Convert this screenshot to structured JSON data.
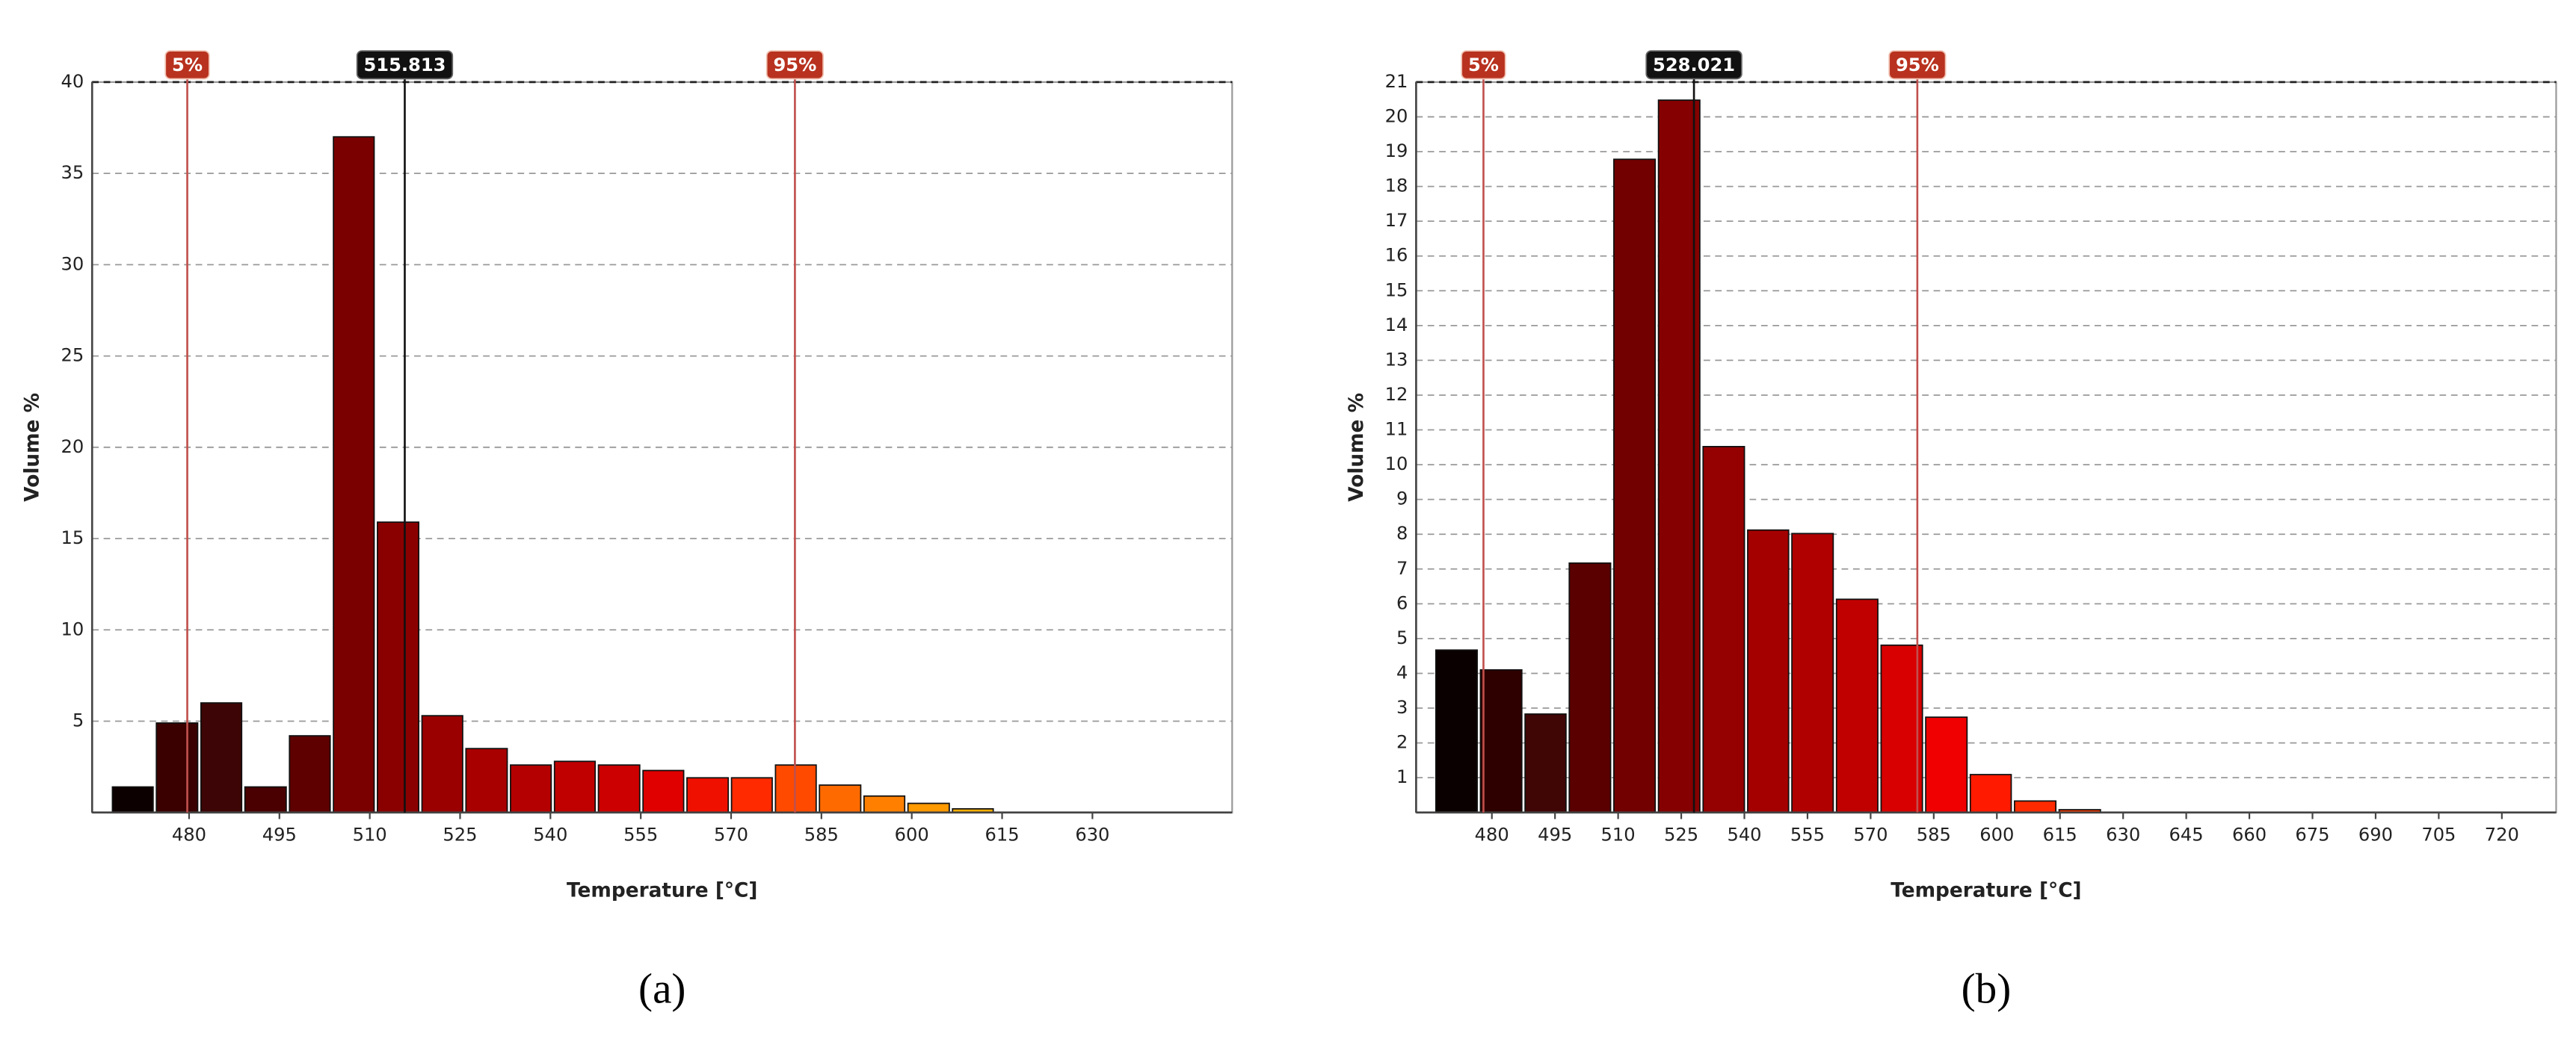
{
  "chart_data": [
    {
      "type": "histogram",
      "caption": "(a)",
      "xlabel": "Temperature [°C]",
      "ylabel": "Volume %",
      "bins": [
        467.0,
        474.3,
        481.7,
        489.0,
        496.4,
        503.7,
        511.0,
        518.4,
        525.7,
        533.1,
        540.4,
        547.7,
        555.1,
        562.4,
        569.8,
        577.1,
        584.4,
        591.8,
        599.1,
        606.5,
        613.8
      ],
      "values": [
        1.4,
        4.9,
        6.0,
        1.4,
        4.2,
        37.0,
        15.9,
        5.3,
        3.5,
        2.6,
        2.8,
        2.6,
        2.3,
        1.9,
        1.9,
        2.6,
        1.5,
        0.9,
        0.5,
        0.2
      ],
      "colors": [
        "#0d0000",
        "#3a0000",
        "#3d0505",
        "#4a0000",
        "#5e0000",
        "#7a0000",
        "#8a0000",
        "#9a0000",
        "#a80000",
        "#b40000",
        "#c00000",
        "#cc0000",
        "#e00000",
        "#f01000",
        "#ff2a00",
        "#ff4a00",
        "#ff6a00",
        "#ff8000",
        "#ff9a00",
        "#ffb000"
      ],
      "xlim": [
        463.9,
        653.2
      ],
      "xticks": [
        480,
        495,
        510,
        525,
        540,
        555,
        570,
        585,
        600,
        615,
        630
      ],
      "ylim": [
        0,
        40
      ],
      "yticks": [
        5,
        10,
        15,
        20,
        25,
        30,
        35,
        40
      ],
      "grid": true,
      "markers": [
        {
          "label": "5%",
          "x": 479.7
        },
        {
          "x": 515.813
        },
        {
          "label": "95%",
          "x": 580.6
        }
      ]
    },
    {
      "type": "histogram",
      "caption": "(b)",
      "xlabel": "Temperature [°C]",
      "ylabel": "Volume %",
      "bins": [
        466.3,
        476.9,
        487.5,
        498.0,
        508.6,
        519.2,
        529.8,
        540.4,
        550.9,
        561.5,
        572.1,
        582.7,
        593.3,
        603.8,
        614.4,
        625.0
      ],
      "values": [
        4.67,
        4.1,
        2.83,
        7.17,
        18.78,
        20.48,
        10.52,
        8.12,
        8.02,
        6.13,
        4.81,
        2.74,
        1.09,
        0.33,
        0.08
      ],
      "colors": [
        "#0a0000",
        "#2e0000",
        "#400505",
        "#5a0000",
        "#720000",
        "#850000",
        "#950000",
        "#a50000",
        "#b00000",
        "#c00000",
        "#d80000",
        "#f00000",
        "#ff1a00",
        "#ff2a00",
        "#ff3a00"
      ],
      "xlim": [
        462.0,
        732.9
      ],
      "xticks": [
        480,
        495,
        510,
        525,
        540,
        555,
        570,
        585,
        600,
        615,
        630,
        645,
        660,
        675,
        690,
        705,
        720
      ],
      "ylim": [
        0,
        21
      ],
      "yticks": [
        1,
        2,
        3,
        4,
        5,
        6,
        7,
        8,
        9,
        10,
        11,
        12,
        13,
        14,
        15,
        16,
        17,
        18,
        19,
        20,
        21
      ],
      "grid": true,
      "markers": [
        {
          "label": "5%",
          "x": 478.0
        },
        {
          "x": 528.021
        },
        {
          "label": "95%",
          "x": 581.1
        }
      ]
    }
  ]
}
